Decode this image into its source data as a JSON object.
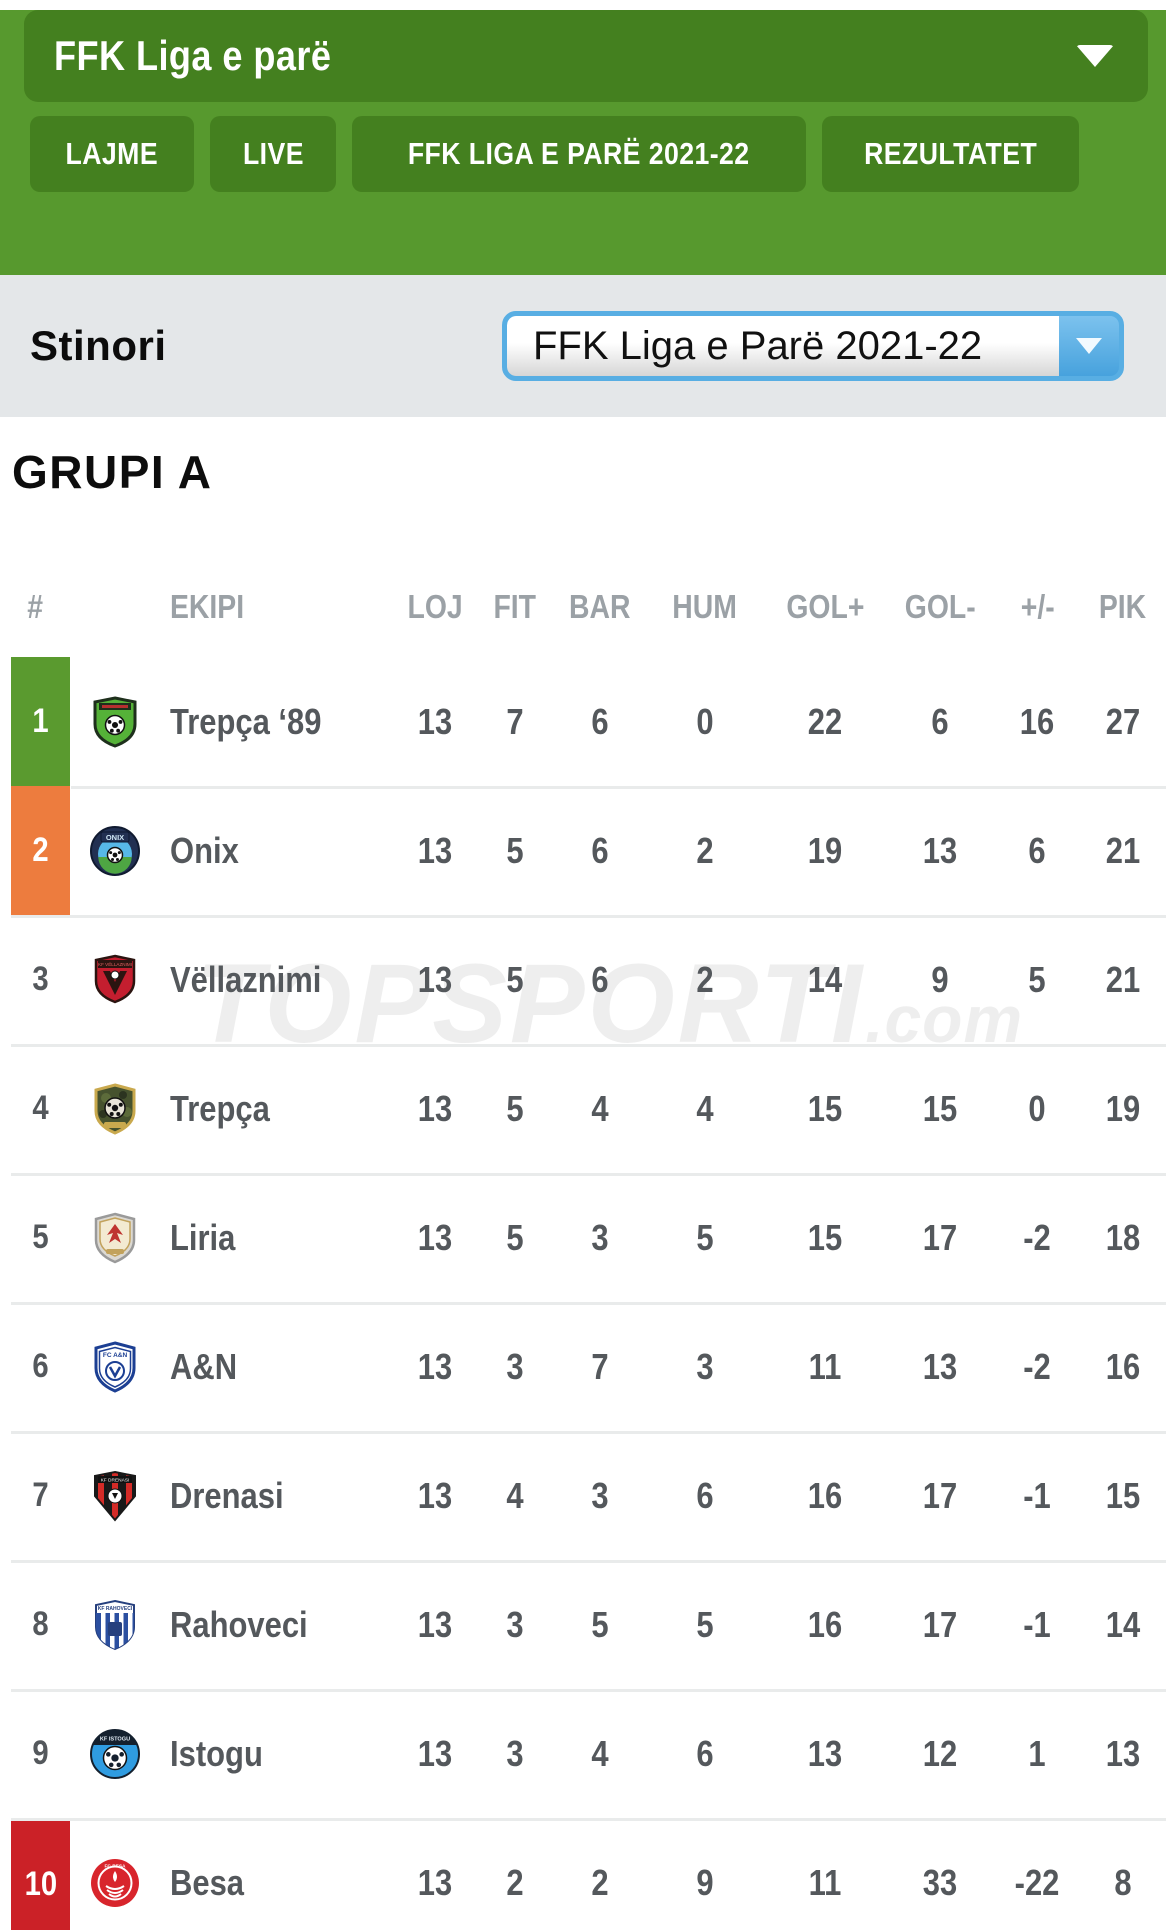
{
  "league_bar": {
    "title": "FFK Liga e parë"
  },
  "nav": [
    "LAJME",
    "LIVE",
    "FFK LIGA E PARË 2021-22",
    "REZULTATET"
  ],
  "season": {
    "label": "Stinori",
    "selected": "FFK Liga e Parë 2021-22"
  },
  "group_title": "GRUPI A",
  "watermark": {
    "main": "TOPSPORTI",
    "suffix": ".com"
  },
  "table": {
    "columns": [
      "#",
      "EKIPI",
      "LOJ",
      "FIT",
      "BAR",
      "HUM",
      "GOL+",
      "GOL-",
      "+/-",
      "PIK"
    ],
    "rows": [
      {
        "rank": 1,
        "team": "Trepça ‘89",
        "logo": "trepca89",
        "strip": "green",
        "values": [
          13,
          7,
          6,
          0,
          22,
          6,
          16,
          27
        ]
      },
      {
        "rank": 2,
        "team": "Onix",
        "logo": "onix",
        "strip": "orange",
        "values": [
          13,
          5,
          6,
          2,
          19,
          13,
          6,
          21
        ]
      },
      {
        "rank": 3,
        "team": "Vëllaznimi",
        "logo": "vellaznimi",
        "strip": null,
        "values": [
          13,
          5,
          6,
          2,
          14,
          9,
          5,
          21
        ]
      },
      {
        "rank": 4,
        "team": "Trepça",
        "logo": "trepca",
        "strip": null,
        "values": [
          13,
          5,
          4,
          4,
          15,
          15,
          0,
          19
        ]
      },
      {
        "rank": 5,
        "team": "Liria",
        "logo": "liria",
        "strip": null,
        "values": [
          13,
          5,
          3,
          5,
          15,
          17,
          -2,
          18
        ]
      },
      {
        "rank": 6,
        "team": "A&N",
        "logo": "an",
        "strip": null,
        "values": [
          13,
          3,
          7,
          3,
          11,
          13,
          -2,
          16
        ]
      },
      {
        "rank": 7,
        "team": "Drenasi",
        "logo": "drenasi",
        "strip": null,
        "values": [
          13,
          4,
          3,
          6,
          16,
          17,
          -1,
          15
        ]
      },
      {
        "rank": 8,
        "team": "Rahoveci",
        "logo": "rahoveci",
        "strip": null,
        "values": [
          13,
          3,
          5,
          5,
          16,
          17,
          -1,
          14
        ]
      },
      {
        "rank": 9,
        "team": "Istogu",
        "logo": "istogu",
        "strip": null,
        "values": [
          13,
          3,
          4,
          6,
          13,
          12,
          1,
          13
        ]
      },
      {
        "rank": 10,
        "team": "Besa",
        "logo": "besa",
        "strip": "red",
        "values": [
          13,
          2,
          2,
          9,
          11,
          33,
          -22,
          8
        ]
      }
    ]
  },
  "colors": {
    "header_bg": "#57992e",
    "button_bg": "#44801f",
    "season_bg": "#e4e7e9",
    "select_border": "#58aee3",
    "strip_green": "#5a9a2f",
    "strip_orange": "#ed7c3e",
    "strip_red": "#cb2127",
    "text_dark": "#54585c",
    "header_text": "#9ba1a6"
  }
}
